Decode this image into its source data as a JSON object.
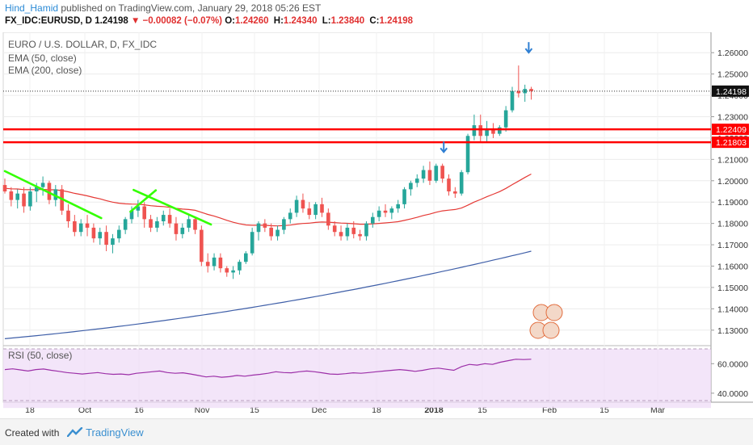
{
  "header": {
    "author": "Hind_Hamid",
    "published_text": "published on TradingView.com, January 29, 2018 05:26 EST",
    "symbol": "FX_IDC:EURUSD, D",
    "last": "1.24198",
    "change": "▼ −0.00082 (−0.07%)",
    "o_label": "O:",
    "o_value": "1.24260",
    "h_label": "H:",
    "h_value": "1.24340",
    "l_label": "L:",
    "l_value": "1.23840",
    "c_label": "C:",
    "c_value": "1.24198"
  },
  "legend": {
    "title": "EURO / U.S. DOLLAR, D, FX_IDC",
    "ema50": "EMA (50, close)",
    "ema200": "EMA (200, close)"
  },
  "rsi_label": "RSI (50, close)",
  "footer": {
    "created_with": "Created with",
    "brand": "TradingView"
  },
  "colors": {
    "up": "#26a69a",
    "down": "#ef5350",
    "ema50": "#e53935",
    "ema200": "#3f5fa8",
    "trend": "#33ff00",
    "level": "#ff0000",
    "arrow": "#2f7fd3",
    "rsi": "#9c2fa8",
    "rsi_band": "#efdcf7"
  },
  "chart_data": [
    {
      "type": "candlestick",
      "title": "EURO / U.S. DOLLAR, D, FX_IDC",
      "ylim": [
        1.125,
        1.265
      ],
      "yticks": [
        "1.26000",
        "1.25000",
        "1.24000",
        "1.23000",
        "1.22000",
        "1.21000",
        "1.20000",
        "1.19000",
        "1.18000",
        "1.17000",
        "1.16000",
        "1.15000",
        "1.14000",
        "1.13000"
      ],
      "xticks": [
        "18",
        "Oct",
        "16",
        "Nov",
        "15",
        "Dec",
        "18",
        "2018",
        "15",
        "Feb",
        "15",
        "Mar"
      ],
      "price_label": "1.24198",
      "levels": [
        "1.22409",
        "1.21803"
      ],
      "ema200": {
        "name": "EMA (200, close)",
        "start": 1.126,
        "end": 1.167
      },
      "candles": [
        [
          1.198,
          1.201,
          1.194,
          1.195
        ],
        [
          1.195,
          1.197,
          1.188,
          1.191
        ],
        [
          1.191,
          1.196,
          1.187,
          1.194
        ],
        [
          1.194,
          1.197,
          1.185,
          1.188
        ],
        [
          1.188,
          1.197,
          1.186,
          1.195
        ],
        [
          1.195,
          1.199,
          1.19,
          1.197
        ],
        [
          1.197,
          1.202,
          1.193,
          1.199
        ],
        [
          1.199,
          1.2,
          1.189,
          1.191
        ],
        [
          1.191,
          1.198,
          1.188,
          1.196
        ],
        [
          1.196,
          1.198,
          1.184,
          1.186
        ],
        [
          1.186,
          1.189,
          1.178,
          1.181
        ],
        [
          1.181,
          1.184,
          1.174,
          1.176
        ],
        [
          1.176,
          1.182,
          1.174,
          1.18
        ],
        [
          1.18,
          1.184,
          1.174,
          1.178
        ],
        [
          1.178,
          1.18,
          1.171,
          1.173
        ],
        [
          1.173,
          1.178,
          1.17,
          1.176
        ],
        [
          1.176,
          1.179,
          1.167,
          1.17
        ],
        [
          1.17,
          1.175,
          1.166,
          1.173
        ],
        [
          1.173,
          1.179,
          1.171,
          1.177
        ],
        [
          1.177,
          1.183,
          1.175,
          1.182
        ],
        [
          1.182,
          1.188,
          1.18,
          1.186
        ],
        [
          1.186,
          1.191,
          1.183,
          1.188
        ],
        [
          1.188,
          1.19,
          1.178,
          1.182
        ],
        [
          1.182,
          1.184,
          1.176,
          1.178
        ],
        [
          1.178,
          1.183,
          1.176,
          1.181
        ],
        [
          1.181,
          1.186,
          1.179,
          1.184
        ],
        [
          1.184,
          1.187,
          1.178,
          1.18
        ],
        [
          1.18,
          1.183,
          1.172,
          1.175
        ],
        [
          1.175,
          1.18,
          1.173,
          1.178
        ],
        [
          1.178,
          1.184,
          1.176,
          1.182
        ],
        [
          1.182,
          1.183,
          1.175,
          1.177
        ],
        [
          1.177,
          1.179,
          1.16,
          1.162
        ],
        [
          1.162,
          1.166,
          1.157,
          1.16
        ],
        [
          1.16,
          1.166,
          1.158,
          1.164
        ],
        [
          1.164,
          1.166,
          1.157,
          1.159
        ],
        [
          1.159,
          1.16,
          1.155,
          1.157
        ],
        [
          1.157,
          1.16,
          1.154,
          1.158
        ],
        [
          1.158,
          1.163,
          1.156,
          1.162
        ],
        [
          1.162,
          1.167,
          1.161,
          1.166
        ],
        [
          1.166,
          1.178,
          1.165,
          1.176
        ],
        [
          1.176,
          1.181,
          1.172,
          1.18
        ],
        [
          1.18,
          1.182,
          1.176,
          1.178
        ],
        [
          1.178,
          1.18,
          1.172,
          1.174
        ],
        [
          1.174,
          1.179,
          1.172,
          1.177
        ],
        [
          1.177,
          1.183,
          1.175,
          1.182
        ],
        [
          1.182,
          1.187,
          1.18,
          1.185
        ],
        [
          1.185,
          1.193,
          1.183,
          1.191
        ],
        [
          1.191,
          1.194,
          1.185,
          1.187
        ],
        [
          1.187,
          1.19,
          1.182,
          1.184
        ],
        [
          1.184,
          1.19,
          1.182,
          1.189
        ],
        [
          1.189,
          1.192,
          1.183,
          1.185
        ],
        [
          1.185,
          1.187,
          1.177,
          1.179
        ],
        [
          1.179,
          1.181,
          1.174,
          1.176
        ],
        [
          1.176,
          1.179,
          1.172,
          1.174
        ],
        [
          1.174,
          1.18,
          1.172,
          1.178
        ],
        [
          1.178,
          1.181,
          1.173,
          1.175
        ],
        [
          1.175,
          1.177,
          1.172,
          1.174
        ],
        [
          1.174,
          1.181,
          1.172,
          1.18
        ],
        [
          1.18,
          1.185,
          1.178,
          1.183
        ],
        [
          1.183,
          1.188,
          1.181,
          1.186
        ],
        [
          1.186,
          1.189,
          1.183,
          1.185
        ],
        [
          1.185,
          1.188,
          1.182,
          1.187
        ],
        [
          1.187,
          1.191,
          1.185,
          1.189
        ],
        [
          1.189,
          1.197,
          1.187,
          1.196
        ],
        [
          1.196,
          1.2,
          1.193,
          1.199
        ],
        [
          1.199,
          1.203,
          1.197,
          1.201
        ],
        [
          1.201,
          1.207,
          1.199,
          1.205
        ],
        [
          1.205,
          1.209,
          1.198,
          1.2
        ],
        [
          1.2,
          1.208,
          1.199,
          1.207
        ],
        [
          1.207,
          1.208,
          1.199,
          1.201
        ],
        [
          1.201,
          1.203,
          1.193,
          1.195
        ],
        [
          1.195,
          1.197,
          1.192,
          1.194
        ],
        [
          1.194,
          1.205,
          1.193,
          1.204
        ],
        [
          1.204,
          1.222,
          1.203,
          1.221
        ],
        [
          1.221,
          1.231,
          1.219,
          1.226
        ],
        [
          1.226,
          1.231,
          1.218,
          1.221
        ],
        [
          1.221,
          1.228,
          1.218,
          1.224
        ],
        [
          1.224,
          1.227,
          1.22,
          1.222
        ],
        [
          1.222,
          1.226,
          1.221,
          1.225
        ],
        [
          1.225,
          1.235,
          1.223,
          1.233
        ],
        [
          1.233,
          1.244,
          1.232,
          1.242
        ],
        [
          1.242,
          1.254,
          1.239,
          1.241
        ],
        [
          1.241,
          1.245,
          1.237,
          1.243
        ],
        [
          1.243,
          1.244,
          1.238,
          1.242
        ]
      ]
    },
    {
      "type": "line",
      "title": "RSI (50, close)",
      "ylim": [
        35,
        70
      ],
      "yticks": [
        "60.0000",
        "40.0000"
      ],
      "series": [
        {
          "values": [
            56,
            56.5,
            55.8,
            55,
            56,
            56.4,
            55.5,
            54.8,
            54,
            53.5,
            53,
            53.5,
            54,
            53.2,
            52.8,
            53,
            52.5,
            53.5,
            54,
            54.5,
            55,
            54,
            53.5,
            53.8,
            53,
            52,
            51,
            51.5,
            50.8,
            51.2,
            52,
            51.5,
            52.2,
            52.8,
            53.5,
            54.5,
            54,
            53.8,
            54.5,
            55,
            54.5,
            53.8,
            53,
            52.8,
            53.2,
            53.8,
            53.5,
            54,
            54.5,
            55,
            55.5,
            56,
            55.5,
            54.8,
            55.5,
            56.5,
            57,
            56.2,
            55.5,
            58,
            59.5,
            59,
            60,
            59.5,
            61,
            62,
            63,
            62.8,
            63
          ]
        }
      ]
    }
  ]
}
